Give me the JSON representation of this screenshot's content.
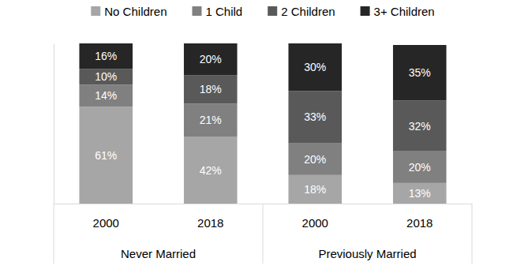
{
  "chart_data": {
    "type": "bar",
    "stacked": true,
    "data_labels": true,
    "legend": "top",
    "tick_labels": "x",
    "categories": [
      "2000",
      "2018",
      "2000",
      "2018"
    ],
    "groups": [
      {
        "name": "Never Married",
        "size": 2
      },
      {
        "name": "Previously Married",
        "size": 2
      }
    ],
    "ylim": [
      0,
      101
    ],
    "series": [
      {
        "name": "No Children",
        "color": "#a6a6a6",
        "values": [
          61,
          42,
          18,
          13
        ],
        "value_labels": [
          "61%",
          "42%",
          "18%",
          "13%"
        ]
      },
      {
        "name": "1 Child",
        "color": "#808080",
        "values": [
          14,
          21,
          20,
          20
        ],
        "value_labels": [
          "14%",
          "21%",
          "20%",
          "20%"
        ]
      },
      {
        "name": "2 Children",
        "color": "#595959",
        "values": [
          10,
          18,
          33,
          32
        ],
        "value_labels": [
          "10%",
          "18%",
          "33%",
          "32%"
        ]
      },
      {
        "name": "3+ Children",
        "color": "#262626",
        "values": [
          16,
          20,
          30,
          35
        ],
        "value_labels": [
          "16%",
          "20%",
          "30%",
          "35%"
        ]
      }
    ]
  }
}
